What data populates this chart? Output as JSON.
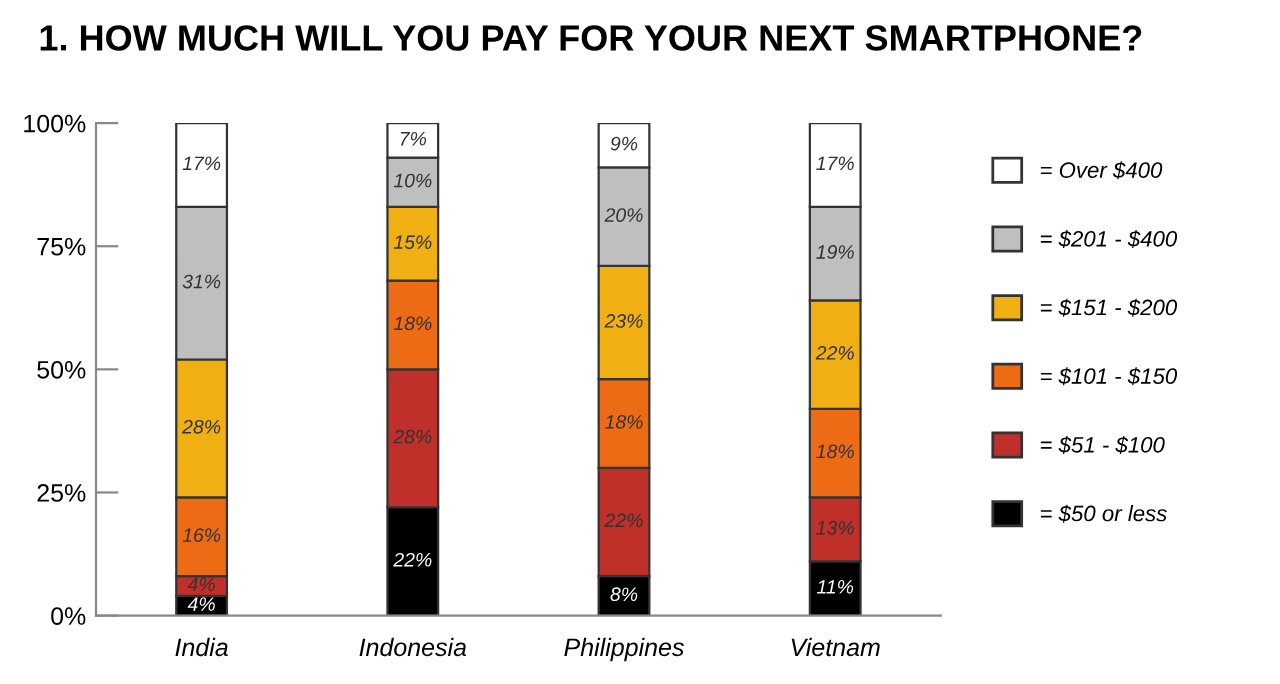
{
  "chart_data": {
    "type": "bar",
    "title": "1. HOW MUCH WILL YOU PAY FOR YOUR NEXT SMARTPHONE?",
    "categories": [
      "India",
      "Indonesia",
      "Philippines",
      "Vietnam"
    ],
    "stacked": true,
    "legend": "right",
    "grid": false,
    "ylim": [
      0,
      100
    ],
    "yticks": [
      {
        "value": 0,
        "label": "0%"
      },
      {
        "value": 25,
        "label": "25%"
      },
      {
        "value": 50,
        "label": "50%"
      },
      {
        "value": 75,
        "label": "75%"
      },
      {
        "value": 100,
        "label": "100%"
      }
    ],
    "series": [
      {
        "name": "= $50 or less",
        "color": "#000000",
        "values": [
          4,
          22,
          8,
          11
        ],
        "value_labels": [
          "4%",
          "22%",
          "8%",
          "11%"
        ]
      },
      {
        "name": "= $51 - $100",
        "color": "#c0302a",
        "values": [
          4,
          28,
          22,
          13
        ],
        "value_labels": [
          "4%",
          "28%",
          "22%",
          "13%"
        ]
      },
      {
        "name": "= $101 - $150",
        "color": "#ec6b14",
        "values": [
          16,
          18,
          18,
          18
        ],
        "value_labels": [
          "16%",
          "18%",
          "18%",
          "18%"
        ]
      },
      {
        "name": "= $151 - $200",
        "color": "#f0b013",
        "values": [
          28,
          15,
          23,
          22
        ],
        "value_labels": [
          "28%",
          "15%",
          "23%",
          "22%"
        ]
      },
      {
        "name": "= $201 - $400",
        "color": "#bfbfbf",
        "values": [
          31,
          10,
          20,
          19
        ],
        "value_labels": [
          "31%",
          "10%",
          "20%",
          "19%"
        ]
      },
      {
        "name": "= Over $400",
        "color": "#ffffff",
        "values": [
          17,
          7,
          9,
          17
        ],
        "value_labels": [
          "17%",
          "7%",
          "9%",
          "17%"
        ]
      }
    ]
  }
}
